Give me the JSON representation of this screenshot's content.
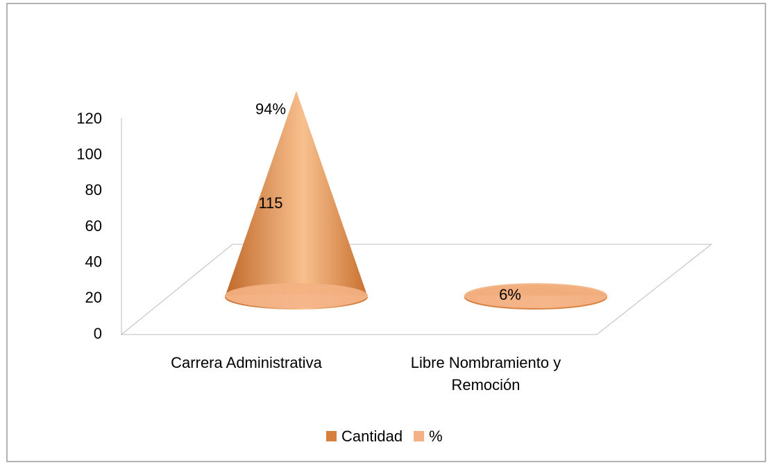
{
  "chart_data": {
    "type": "cone3d",
    "categories": [
      "Carrera Administrativa",
      "Libre Nombramiento y Remoción"
    ],
    "series": [
      {
        "name": "Cantidad",
        "color": "#d7803e",
        "values": [
          115,
          7
        ]
      },
      {
        "name": "%",
        "color": "#f4b183",
        "values": [
          0.94,
          0.06
        ],
        "value_labels": [
          "94%",
          "6%"
        ]
      }
    ],
    "ylim": [
      0,
      120
    ],
    "yticks": [
      0,
      20,
      40,
      60,
      80,
      100,
      120
    ],
    "legend": "bottom"
  }
}
